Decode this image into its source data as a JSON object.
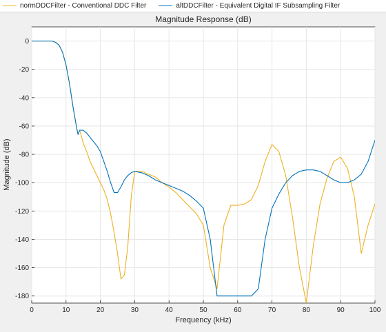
{
  "legend": {
    "items": [
      {
        "label": "normDDCFilter - Conventional DDC Filter",
        "color": "#EDB120"
      },
      {
        "label": "altDDCFilter - Equivalent Digital IF Subsampling Filter",
        "color": "#0072BD"
      }
    ]
  },
  "chart_data": {
    "type": "line",
    "title": "Magnitude Response (dB)",
    "xlabel": "Frequency (kHz)",
    "ylabel": "Magnitude (dB)",
    "xlim": [
      0,
      100
    ],
    "ylim": [
      -185,
      10
    ],
    "xticks": [
      0,
      10,
      20,
      30,
      40,
      50,
      60,
      70,
      80,
      90,
      100
    ],
    "yticks": [
      0,
      -20,
      -40,
      -60,
      -80,
      -100,
      -120,
      -140,
      -160,
      -180
    ],
    "grid": true,
    "legend_position": "top",
    "series": [
      {
        "name": "normDDCFilter - Conventional DDC Filter",
        "color": "#EDB120",
        "x": [
          0,
          6,
          7,
          8,
          9,
          10,
          11,
          12,
          13,
          13.5,
          14,
          15,
          16,
          17,
          18,
          19,
          20,
          21,
          22,
          23,
          24,
          25,
          26,
          27,
          28,
          29,
          30,
          32,
          34,
          36,
          38,
          40,
          42,
          44,
          46,
          48,
          50,
          52,
          54,
          56,
          58,
          60,
          62,
          64,
          66,
          68,
          70,
          72,
          74,
          76,
          78,
          80,
          82,
          84,
          86,
          88,
          90,
          92,
          94,
          96,
          98,
          100
        ],
        "y": [
          0,
          0,
          -1,
          -3,
          -8,
          -17,
          -30,
          -46,
          -60,
          -66,
          -63,
          -72,
          -78,
          -85,
          -90,
          -95,
          -100,
          -105,
          -112,
          -122,
          -135,
          -150,
          -168,
          -165,
          -145,
          -110,
          -92,
          -92,
          -94,
          -96,
          -100,
          -103,
          -107,
          -112,
          -117,
          -122,
          -130,
          -160,
          -175,
          -130,
          -116,
          -116,
          -115,
          -112,
          -102,
          -85,
          -73,
          -78,
          -95,
          -125,
          -160,
          -185,
          -145,
          -115,
          -97,
          -85,
          -82,
          -90,
          -110,
          -150,
          -130,
          -115
        ]
      },
      {
        "name": "altDDCFilter - Equivalent Digital IF Subsampling Filter",
        "color": "#0072BD",
        "x": [
          0,
          6,
          7,
          8,
          9,
          10,
          11,
          12,
          13,
          13.5,
          14,
          15,
          16,
          17,
          18,
          19,
          20,
          21,
          22,
          23,
          24,
          25,
          26,
          27,
          28,
          29,
          30,
          32,
          34,
          36,
          38,
          40,
          42,
          44,
          46,
          48,
          50,
          52,
          54,
          56,
          58,
          60,
          62,
          64,
          66,
          68,
          70,
          72,
          74,
          76,
          78,
          80,
          82,
          84,
          86,
          88,
          90,
          92,
          94,
          96,
          98,
          100
        ],
        "y": [
          0,
          0,
          -1,
          -3,
          -8,
          -17,
          -30,
          -46,
          -60,
          -66,
          -63,
          -63,
          -65,
          -68,
          -71,
          -74,
          -78,
          -85,
          -92,
          -100,
          -107,
          -107,
          -103,
          -98,
          -95,
          -93,
          -92,
          -93,
          -95,
          -98,
          -100,
          -102,
          -104,
          -106,
          -109,
          -113,
          -118,
          -140,
          -180,
          -180,
          -180,
          -180,
          -180,
          -180,
          -175,
          -140,
          -118,
          -108,
          -100,
          -95,
          -92,
          -91,
          -91,
          -92,
          -95,
          -98,
          -100,
          -100,
          -98,
          -94,
          -85,
          -70
        ]
      }
    ]
  }
}
